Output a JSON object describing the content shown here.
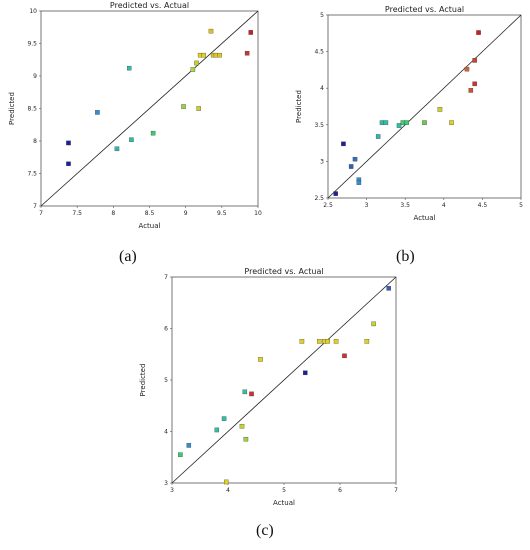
{
  "chart_data": [
    {
      "type": "scatter",
      "caption": "(a)",
      "title": "Predicted vs. Actual",
      "xlabel": "Actual",
      "ylabel": "Predicted",
      "xlim": [
        7,
        10
      ],
      "ylim": [
        7,
        10
      ],
      "xticks": [
        "7",
        "7.5",
        "8",
        "8.5",
        "9",
        "9.5",
        "10"
      ],
      "yticks": [
        "7",
        "7.5",
        "8",
        "8.5",
        "9",
        "9.5",
        "10"
      ],
      "diagonal": [
        [
          7,
          7
        ],
        [
          10,
          10
        ]
      ],
      "points": [
        {
          "x": 7.38,
          "y": 7.97,
          "color": "#1f1f9e"
        },
        {
          "x": 7.38,
          "y": 7.65,
          "color": "#1f1f9e"
        },
        {
          "x": 7.78,
          "y": 8.44,
          "color": "#2f8fd0"
        },
        {
          "x": 8.05,
          "y": 7.88,
          "color": "#2fb8b0"
        },
        {
          "x": 8.22,
          "y": 9.12,
          "color": "#2fbfa8"
        },
        {
          "x": 8.25,
          "y": 8.02,
          "color": "#2fc0a0"
        },
        {
          "x": 8.55,
          "y": 8.12,
          "color": "#3ccc70"
        },
        {
          "x": 8.97,
          "y": 8.53,
          "color": "#9fd040"
        },
        {
          "x": 9.1,
          "y": 9.1,
          "color": "#a8d840"
        },
        {
          "x": 9.15,
          "y": 9.2,
          "color": "#c8d030"
        },
        {
          "x": 9.18,
          "y": 8.5,
          "color": "#c8d030"
        },
        {
          "x": 9.2,
          "y": 9.32,
          "color": "#e0d020"
        },
        {
          "x": 9.25,
          "y": 9.32,
          "color": "#e0d020"
        },
        {
          "x": 9.35,
          "y": 9.69,
          "color": "#e0c020"
        },
        {
          "x": 9.38,
          "y": 9.32,
          "color": "#e0c820"
        },
        {
          "x": 9.42,
          "y": 9.32,
          "color": "#e0c820"
        },
        {
          "x": 9.47,
          "y": 9.32,
          "color": "#e0c820"
        },
        {
          "x": 9.85,
          "y": 9.35,
          "color": "#d03030"
        },
        {
          "x": 9.9,
          "y": 9.67,
          "color": "#c82020"
        }
      ]
    },
    {
      "type": "scatter",
      "caption": "(b)",
      "title": "Predicted vs. Actual",
      "xlabel": "Actual",
      "ylabel": "Predicted",
      "xlim": [
        2.5,
        5
      ],
      "ylim": [
        2.5,
        5
      ],
      "xticks": [
        "2.5",
        "3",
        "3.5",
        "4",
        "4.5",
        "5"
      ],
      "yticks": [
        "2.5",
        "3",
        "3.5",
        "4",
        "4.5",
        "5"
      ],
      "diagonal": [
        [
          2.5,
          2.5
        ],
        [
          5,
          5
        ]
      ],
      "points": [
        {
          "x": 2.6,
          "y": 2.56,
          "color": "#1f1f9e"
        },
        {
          "x": 2.7,
          "y": 3.24,
          "color": "#1f1f9e"
        },
        {
          "x": 2.8,
          "y": 2.93,
          "color": "#2f5fc0"
        },
        {
          "x": 2.85,
          "y": 3.03,
          "color": "#2f6fc8"
        },
        {
          "x": 2.9,
          "y": 2.75,
          "color": "#2f8fd0"
        },
        {
          "x": 2.9,
          "y": 2.71,
          "color": "#2f8fd0"
        },
        {
          "x": 3.15,
          "y": 3.34,
          "color": "#2fb8b0"
        },
        {
          "x": 3.2,
          "y": 3.53,
          "color": "#2fbfa8"
        },
        {
          "x": 3.25,
          "y": 3.53,
          "color": "#2fbfa8"
        },
        {
          "x": 3.42,
          "y": 3.49,
          "color": "#2fc0a0"
        },
        {
          "x": 3.47,
          "y": 3.53,
          "color": "#3ccc70"
        },
        {
          "x": 3.52,
          "y": 3.53,
          "color": "#3ccc70"
        },
        {
          "x": 3.75,
          "y": 3.53,
          "color": "#6cc850"
        },
        {
          "x": 3.95,
          "y": 3.71,
          "color": "#c8d030"
        },
        {
          "x": 4.1,
          "y": 3.53,
          "color": "#e0d020"
        },
        {
          "x": 4.3,
          "y": 4.26,
          "color": "#d86030"
        },
        {
          "x": 4.35,
          "y": 3.97,
          "color": "#d05030"
        },
        {
          "x": 4.4,
          "y": 4.38,
          "color": "#d04030"
        },
        {
          "x": 4.4,
          "y": 4.06,
          "color": "#d03030"
        },
        {
          "x": 4.45,
          "y": 4.76,
          "color": "#c82020"
        }
      ]
    },
    {
      "type": "scatter",
      "caption": "(c)",
      "title": "Predicted vs. Actual",
      "xlabel": "Actual",
      "ylabel": "Predicted",
      "xlim": [
        3,
        7
      ],
      "ylim": [
        3,
        7
      ],
      "xticks": [
        "3",
        "4",
        "5",
        "6",
        "7"
      ],
      "yticks": [
        "3",
        "4",
        "5",
        "6",
        "7"
      ],
      "diagonal": [
        [
          3,
          3
        ],
        [
          7,
          7
        ]
      ],
      "points": [
        {
          "x": 3.15,
          "y": 3.55,
          "color": "#3ccc70"
        },
        {
          "x": 3.3,
          "y": 3.73,
          "color": "#2f8fd0"
        },
        {
          "x": 3.8,
          "y": 4.03,
          "color": "#2fc0a0"
        },
        {
          "x": 3.93,
          "y": 4.25,
          "color": "#2fbfa8"
        },
        {
          "x": 3.97,
          "y": 3.02,
          "color": "#e0d020"
        },
        {
          "x": 4.25,
          "y": 4.1,
          "color": "#c8d030"
        },
        {
          "x": 4.3,
          "y": 4.77,
          "color": "#2fc0a0"
        },
        {
          "x": 4.32,
          "y": 3.85,
          "color": "#9fd040"
        },
        {
          "x": 4.42,
          "y": 4.73,
          "color": "#d03030"
        },
        {
          "x": 4.58,
          "y": 5.4,
          "color": "#e0d020"
        },
        {
          "x": 5.32,
          "y": 5.75,
          "color": "#e0d020"
        },
        {
          "x": 5.38,
          "y": 5.14,
          "color": "#1f1f9e"
        },
        {
          "x": 5.63,
          "y": 5.75,
          "color": "#e0d020"
        },
        {
          "x": 5.72,
          "y": 5.75,
          "color": "#e0d020"
        },
        {
          "x": 5.78,
          "y": 5.75,
          "color": "#e0d020"
        },
        {
          "x": 5.93,
          "y": 5.75,
          "color": "#e0d020"
        },
        {
          "x": 6.08,
          "y": 5.47,
          "color": "#d03030"
        },
        {
          "x": 6.48,
          "y": 5.75,
          "color": "#e0d020"
        },
        {
          "x": 6.6,
          "y": 6.09,
          "color": "#c8d030"
        },
        {
          "x": 6.87,
          "y": 6.78,
          "color": "#2f5fc0"
        }
      ]
    }
  ]
}
